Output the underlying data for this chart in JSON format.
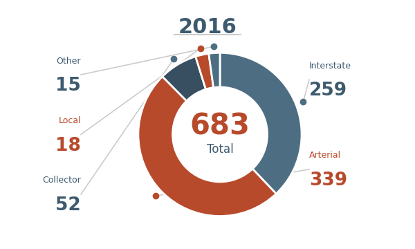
{
  "title": "2016",
  "total": 683,
  "total_label": "Total",
  "slices": [
    {
      "label": "Interstate",
      "value": 259,
      "color": "#4d6e82"
    },
    {
      "label": "Arterial",
      "value": 339,
      "color": "#b84a2c"
    },
    {
      "label": "Collector",
      "value": 52,
      "color": "#374f60"
    },
    {
      "label": "Local",
      "value": 18,
      "color": "#b84a2c"
    },
    {
      "label": "Other",
      "value": 15,
      "color": "#4d6e82"
    }
  ],
  "label_colors": {
    "Interstate": "#3d5a6e",
    "Arterial": "#b84a2c",
    "Collector": "#3d5a6e",
    "Local": "#b84a2c",
    "Other": "#3d5a6e"
  },
  "dot_colors": {
    "Interstate": "#4d6e82",
    "Arterial": "#b84a2c",
    "Collector": "#4d6e82",
    "Local": "#b84a2c",
    "Other": "#4d6e82"
  },
  "bg_color": "#ffffff",
  "title_color": "#3d5a6e",
  "total_number_color": "#b84a2c",
  "total_text_color": "#3d5a6e",
  "line_color": "#cccccc",
  "figsize": [
    6.0,
    3.6
  ],
  "dpi": 100
}
